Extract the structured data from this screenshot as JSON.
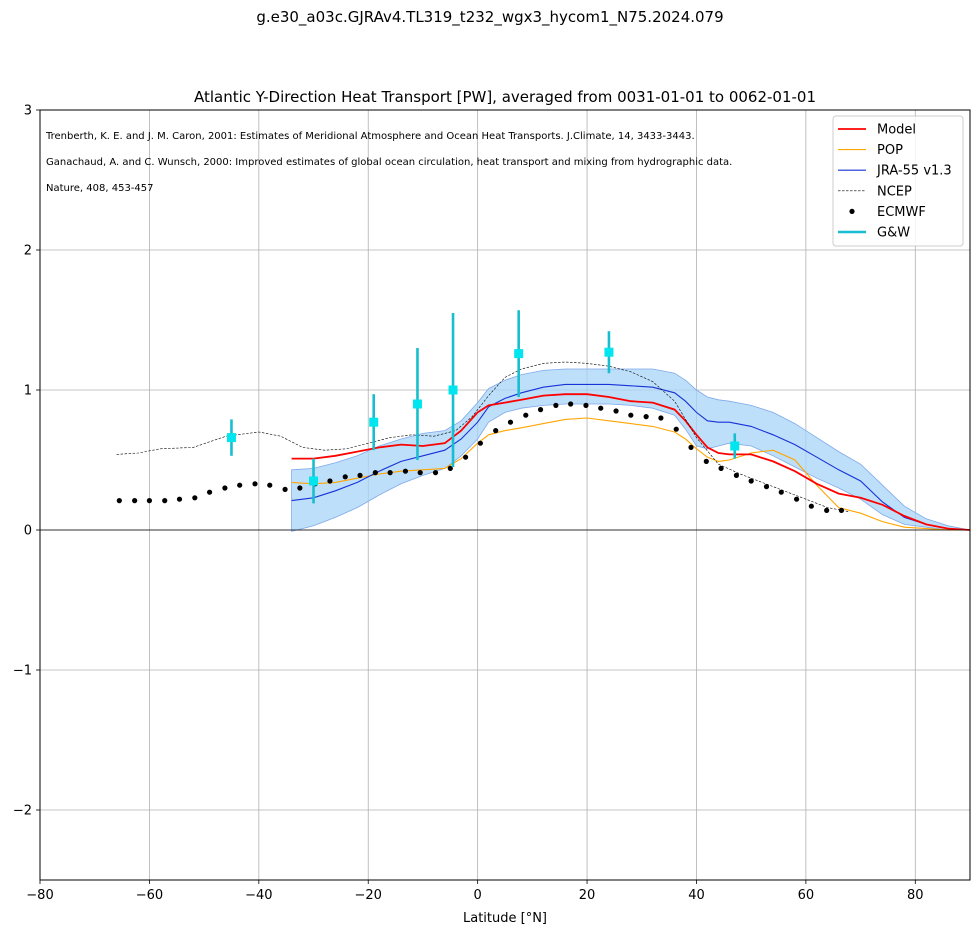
{
  "suptitle": "g.e30_a03c.GJRAv4.TL319_t232_wgx3_hycom1_N75.2024.079",
  "chart_data": {
    "type": "line",
    "title": "Atlantic Y-Direction Heat Transport [PW], averaged from 0031-01-01 to 0062-01-01",
    "xlabel": "Latitude [°N]",
    "ylabel": "",
    "xlim": [
      -80,
      90
    ],
    "ylim": [
      -2.5,
      3
    ],
    "xticks": [
      -80,
      -60,
      -40,
      -20,
      0,
      20,
      40,
      60,
      80
    ],
    "xtick_labels": [
      "−80",
      "−60",
      "−40",
      "−20",
      "0",
      "20",
      "40",
      "60",
      "80"
    ],
    "yticks": [
      -2,
      -1,
      0,
      1,
      2,
      3
    ],
    "ytick_labels": [
      "−2",
      "−1",
      "0",
      "1",
      "2",
      "3"
    ],
    "grid": true,
    "legend_placement": "top-right",
    "references": [
      "Trenberth, K. E. and J. M. Caron, 2001: Estimates of Meridional Atmosphere and Ocean Heat Transports. J.Climate, 14, 3433-3443.",
      "Ganachaud, A. and C. Wunsch, 2000: Improved estimates of global ocean circulation, heat transport and mixing from hydrographic data.",
      "Nature, 408, 453-457"
    ],
    "series": [
      {
        "name": "Model",
        "style": "line",
        "color": "#ff0000",
        "x": [
          -34,
          -30,
          -26,
          -22,
          -18,
          -14,
          -10,
          -6,
          -3,
          0,
          2,
          5,
          8,
          12,
          16,
          20,
          24,
          28,
          32,
          36,
          38,
          40,
          42,
          44,
          46,
          50,
          54,
          58,
          62,
          66,
          70,
          74,
          78,
          82,
          86,
          90
        ],
        "y": [
          0.51,
          0.51,
          0.53,
          0.56,
          0.59,
          0.61,
          0.6,
          0.62,
          0.71,
          0.84,
          0.89,
          0.91,
          0.93,
          0.96,
          0.97,
          0.97,
          0.95,
          0.92,
          0.91,
          0.86,
          0.78,
          0.68,
          0.59,
          0.55,
          0.54,
          0.54,
          0.49,
          0.42,
          0.33,
          0.26,
          0.23,
          0.18,
          0.1,
          0.04,
          0.01,
          0.0
        ]
      },
      {
        "name": "POP",
        "style": "line",
        "color": "#ffa500",
        "x": [
          -34,
          -30,
          -26,
          -22,
          -18,
          -14,
          -10,
          -6,
          -3,
          0,
          2,
          5,
          8,
          12,
          16,
          20,
          24,
          28,
          32,
          36,
          38,
          40,
          42,
          44,
          46,
          50,
          54,
          58,
          62,
          66,
          70,
          74,
          78,
          82,
          86,
          90
        ],
        "y": [
          0.34,
          0.33,
          0.34,
          0.37,
          0.4,
          0.42,
          0.43,
          0.44,
          0.51,
          0.62,
          0.68,
          0.71,
          0.73,
          0.76,
          0.79,
          0.8,
          0.78,
          0.76,
          0.74,
          0.7,
          0.65,
          0.58,
          0.52,
          0.49,
          0.5,
          0.55,
          0.57,
          0.5,
          0.32,
          0.16,
          0.12,
          0.06,
          0.02,
          0.01,
          0.0,
          0.0
        ]
      },
      {
        "name": "JRA-55 v1.3",
        "style": "line",
        "color": "#1732d8",
        "band_color": "#a7d4f7",
        "x": [
          -34,
          -30,
          -26,
          -22,
          -18,
          -14,
          -10,
          -6,
          -3,
          0,
          2,
          5,
          8,
          12,
          16,
          20,
          24,
          28,
          32,
          36,
          38,
          40,
          42,
          44,
          46,
          50,
          54,
          58,
          62,
          66,
          70,
          74,
          78,
          82,
          86,
          90
        ],
        "y": [
          0.21,
          0.23,
          0.28,
          0.34,
          0.42,
          0.49,
          0.53,
          0.57,
          0.65,
          0.77,
          0.88,
          0.94,
          0.98,
          1.02,
          1.04,
          1.04,
          1.04,
          1.03,
          1.02,
          0.98,
          0.92,
          0.84,
          0.78,
          0.77,
          0.77,
          0.74,
          0.68,
          0.61,
          0.52,
          0.43,
          0.35,
          0.2,
          0.09,
          0.04,
          0.01,
          0.0
        ],
        "lower": [
          -0.01,
          0.03,
          0.09,
          0.16,
          0.25,
          0.33,
          0.39,
          0.44,
          0.53,
          0.65,
          0.77,
          0.84,
          0.87,
          0.89,
          0.9,
          0.9,
          0.9,
          0.89,
          0.87,
          0.82,
          0.72,
          0.6,
          0.58,
          0.6,
          0.62,
          0.6,
          0.53,
          0.45,
          0.37,
          0.3,
          0.22,
          0.11,
          0.04,
          0.02,
          0.0,
          0.0
        ],
        "upper": [
          0.43,
          0.44,
          0.48,
          0.53,
          0.6,
          0.65,
          0.69,
          0.71,
          0.78,
          0.91,
          1.01,
          1.07,
          1.11,
          1.14,
          1.15,
          1.15,
          1.15,
          1.15,
          1.15,
          1.12,
          1.07,
          1.0,
          0.95,
          0.93,
          0.92,
          0.89,
          0.84,
          0.76,
          0.66,
          0.56,
          0.47,
          0.32,
          0.17,
          0.08,
          0.03,
          0.0
        ]
      },
      {
        "name": "NCEP",
        "style": "dashed",
        "color": "#000000",
        "x": [
          -66,
          -62,
          -58,
          -52,
          -46,
          -40,
          -36,
          -32,
          -28,
          -24,
          -20,
          -16,
          -12,
          -8,
          -4,
          -1,
          2,
          5,
          8,
          12,
          16,
          20,
          24,
          28,
          32,
          36,
          40,
          44,
          48,
          52,
          56,
          60,
          64,
          68
        ],
        "y": [
          0.54,
          0.55,
          0.58,
          0.59,
          0.67,
          0.7,
          0.67,
          0.59,
          0.57,
          0.58,
          0.62,
          0.66,
          0.68,
          0.67,
          0.71,
          0.81,
          0.96,
          1.09,
          1.15,
          1.19,
          1.2,
          1.19,
          1.17,
          1.13,
          1.06,
          0.92,
          0.66,
          0.47,
          0.4,
          0.34,
          0.28,
          0.22,
          0.16,
          0.13
        ]
      },
      {
        "name": "ECMWF",
        "style": "dots",
        "color": "#000000",
        "x": [
          -65.5,
          -62.7,
          -60,
          -57.2,
          -54.5,
          -51.7,
          -49,
          -46.2,
          -43.5,
          -40.7,
          -38,
          -35.2,
          -32.5,
          -29.7,
          -27,
          -24.2,
          -21.5,
          -18.7,
          -16,
          -13.2,
          -10.5,
          -7.7,
          -5,
          -2.2,
          0.5,
          3.3,
          6,
          8.8,
          11.5,
          14.3,
          17,
          19.8,
          22.5,
          25.3,
          28,
          30.8,
          33.5,
          36.3,
          39,
          41.8,
          44.5,
          47.3,
          50,
          52.8,
          55.5,
          58.3,
          61,
          63.8,
          66.5
        ],
        "y": [
          0.21,
          0.21,
          0.21,
          0.21,
          0.22,
          0.23,
          0.27,
          0.3,
          0.32,
          0.33,
          0.32,
          0.29,
          0.3,
          0.33,
          0.35,
          0.38,
          0.39,
          0.41,
          0.41,
          0.42,
          0.41,
          0.41,
          0.44,
          0.52,
          0.62,
          0.71,
          0.77,
          0.82,
          0.86,
          0.89,
          0.9,
          0.89,
          0.87,
          0.85,
          0.82,
          0.81,
          0.8,
          0.72,
          0.59,
          0.49,
          0.44,
          0.39,
          0.35,
          0.31,
          0.27,
          0.22,
          0.17,
          0.14,
          0.14
        ]
      },
      {
        "name": "G&W",
        "style": "errorbar",
        "color": "#17becf",
        "marker_color": "#00e5ee",
        "x": [
          -45,
          -30,
          -19,
          -11,
          -4.5,
          7.5,
          24,
          47
        ],
        "y": [
          0.66,
          0.35,
          0.77,
          0.9,
          1.0,
          1.26,
          1.27,
          0.6
        ],
        "err": [
          0.13,
          0.16,
          0.2,
          0.4,
          0.55,
          0.31,
          0.15,
          0.09
        ]
      }
    ]
  }
}
